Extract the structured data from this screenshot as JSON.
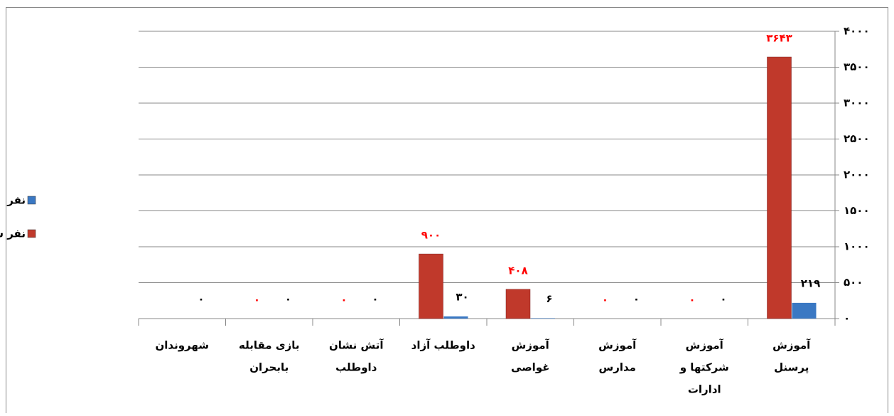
{
  "chart_data": {
    "type": "bar",
    "categories": [
      [
        "آموزش",
        "پرسنل"
      ],
      [
        "آموزش",
        "شرکتها و",
        "ادارات"
      ],
      [
        "آموزش",
        "مدارس"
      ],
      [
        "آموزش",
        "غواصی"
      ],
      [
        "داوطلب آزاد"
      ],
      [
        "آتش نشان",
        "داوطلب"
      ],
      [
        "بازی مقابله",
        "بابحران"
      ],
      [
        "شهروندان"
      ]
    ],
    "series": [
      {
        "name": "نفر ساعت",
        "color": "#c0392b",
        "label_color": "#ff0000",
        "values": [
          3643,
          0,
          0,
          408,
          900,
          0,
          0,
          null
        ],
        "value_labels": [
          "۳۶۴۳",
          "۰",
          "۰",
          "۴۰۸",
          "۹۰۰",
          "۰",
          "۰",
          null
        ]
      },
      {
        "name": "نفر",
        "color": "#3a78c3",
        "label_color": "#000000",
        "values": [
          219,
          0,
          0,
          6,
          30,
          0,
          0,
          0
        ],
        "value_labels": [
          "۲۱۹",
          "۰",
          "۰",
          "۶",
          "۳۰",
          "۰",
          "۰",
          "۰"
        ]
      }
    ],
    "ylim": [
      0,
      4000
    ],
    "yticks": [
      {
        "value": 0,
        "label": "۰"
      },
      {
        "value": 500,
        "label": "۵۰۰"
      },
      {
        "value": 1000,
        "label": "۱۰۰۰"
      },
      {
        "value": 1500,
        "label": "۱۵۰۰"
      },
      {
        "value": 2000,
        "label": "۲۰۰۰"
      },
      {
        "value": 2500,
        "label": "۲۵۰۰"
      },
      {
        "value": 3000,
        "label": "۳۰۰۰"
      },
      {
        "value": 3500,
        "label": "۳۵۰۰"
      },
      {
        "value": 4000,
        "label": "۴۰۰۰"
      }
    ],
    "grid": true,
    "legend": "left",
    "category_order": "right-to-left"
  }
}
